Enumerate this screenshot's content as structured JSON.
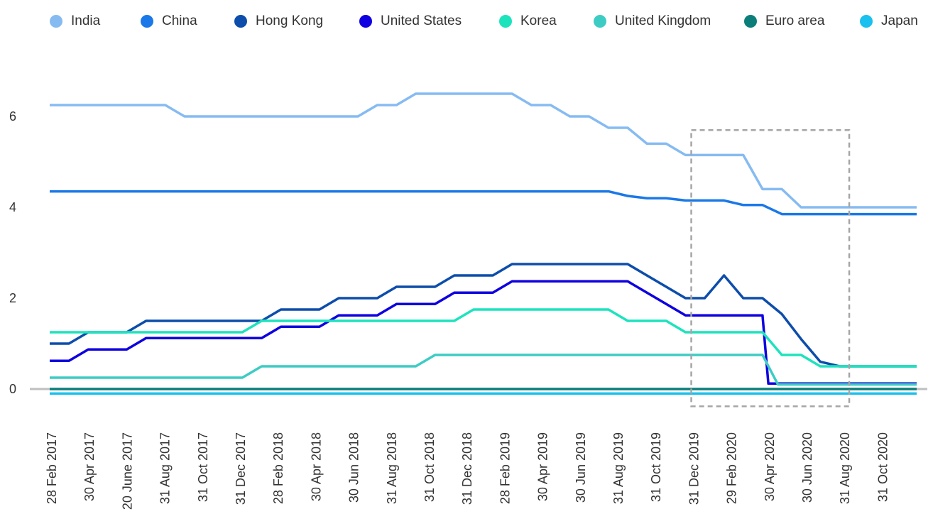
{
  "chart_data": {
    "type": "line",
    "title": "",
    "xlabel": "",
    "ylabel": "",
    "ylim": [
      -0.6,
      7.2
    ],
    "y_ticks": [
      0,
      2,
      4,
      6
    ],
    "x_tick_labels": [
      "28 Feb 2017",
      "30 Apr 2017",
      "20 June 2017",
      "31 Aug 2017",
      "31 Oct 2017",
      "31 Dec 2017",
      "28 Feb 2018",
      "30 Apr 2018",
      "30 Jun 2018",
      "31 Aug 2018",
      "31 Oct 2018",
      "31 Dec 2018",
      "28 Feb 2019",
      "30 Apr 2019",
      "30 Jun 2019",
      "31 Aug 2019",
      "31 Oct 2019",
      "31 Dec 2019",
      "29 Feb 2020",
      "30 Apr 2020",
      "30 Jun 2020",
      "31 Aug 2020",
      "31 Oct 2020"
    ],
    "x_range": [
      0,
      45
    ],
    "highlight_box": {
      "x_start": 33.3,
      "x_end": 41.5,
      "y_top": 5.7,
      "y_bottom": -0.38
    },
    "series": [
      {
        "name": "India",
        "color": "#86BBF2",
        "points": [
          [
            0,
            6.25
          ],
          [
            6,
            6.25
          ],
          [
            7,
            6.0
          ],
          [
            16,
            6.0
          ],
          [
            17,
            6.25
          ],
          [
            18,
            6.25
          ],
          [
            19,
            6.5
          ],
          [
            24,
            6.5
          ],
          [
            25,
            6.25
          ],
          [
            26,
            6.25
          ],
          [
            27,
            6.0
          ],
          [
            28,
            6.0
          ],
          [
            29,
            5.75
          ],
          [
            30,
            5.75
          ],
          [
            31,
            5.4
          ],
          [
            32,
            5.4
          ],
          [
            33,
            5.15
          ],
          [
            36,
            5.15
          ],
          [
            37,
            4.4
          ],
          [
            38,
            4.4
          ],
          [
            39,
            4.0
          ],
          [
            45,
            4.0
          ]
        ]
      },
      {
        "name": "China",
        "color": "#1A78E8",
        "points": [
          [
            0,
            4.35
          ],
          [
            29,
            4.35
          ],
          [
            30,
            4.25
          ],
          [
            31,
            4.2
          ],
          [
            32,
            4.2
          ],
          [
            33,
            4.15
          ],
          [
            34,
            4.15
          ],
          [
            35,
            4.15
          ],
          [
            36,
            4.05
          ],
          [
            37,
            4.05
          ],
          [
            38,
            3.85
          ],
          [
            45,
            3.85
          ]
        ]
      },
      {
        "name": "Hong Kong",
        "color": "#0D4DAB",
        "points": [
          [
            0,
            1.0
          ],
          [
            1,
            1.0
          ],
          [
            2,
            1.25
          ],
          [
            4,
            1.25
          ],
          [
            5,
            1.5
          ],
          [
            11,
            1.5
          ],
          [
            12,
            1.75
          ],
          [
            14,
            1.75
          ],
          [
            15,
            2.0
          ],
          [
            17,
            2.0
          ],
          [
            18,
            2.25
          ],
          [
            20,
            2.25
          ],
          [
            21,
            2.5
          ],
          [
            23,
            2.5
          ],
          [
            24,
            2.75
          ],
          [
            30,
            2.75
          ],
          [
            31,
            2.5
          ],
          [
            32,
            2.25
          ],
          [
            33,
            2.0
          ],
          [
            34,
            2.0
          ],
          [
            35,
            2.5
          ],
          [
            36,
            2.0
          ],
          [
            37,
            2.0
          ],
          [
            38,
            1.65
          ],
          [
            39,
            1.1
          ],
          [
            40,
            0.6
          ],
          [
            41,
            0.5
          ],
          [
            45,
            0.5
          ]
        ]
      },
      {
        "name": "United States",
        "color": "#0E00E0",
        "points": [
          [
            0,
            0.62
          ],
          [
            1,
            0.62
          ],
          [
            2,
            0.87
          ],
          [
            4,
            0.87
          ],
          [
            5,
            1.12
          ],
          [
            10,
            1.12
          ],
          [
            11,
            1.12
          ],
          [
            12,
            1.37
          ],
          [
            14,
            1.37
          ],
          [
            15,
            1.62
          ],
          [
            17,
            1.62
          ],
          [
            18,
            1.87
          ],
          [
            20,
            1.87
          ],
          [
            21,
            2.12
          ],
          [
            23,
            2.12
          ],
          [
            24,
            2.37
          ],
          [
            30,
            2.37
          ],
          [
            31,
            2.12
          ],
          [
            32,
            1.87
          ],
          [
            33,
            1.62
          ],
          [
            37,
            1.62
          ],
          [
            37.3,
            0.12
          ],
          [
            45,
            0.12
          ]
        ]
      },
      {
        "name": "Korea",
        "color": "#1DE3BD",
        "points": [
          [
            0,
            1.25
          ],
          [
            9,
            1.25
          ],
          [
            10,
            1.25
          ],
          [
            11,
            1.5
          ],
          [
            21,
            1.5
          ],
          [
            22,
            1.75
          ],
          [
            29,
            1.75
          ],
          [
            30,
            1.5
          ],
          [
            32,
            1.5
          ],
          [
            33,
            1.25
          ],
          [
            37,
            1.25
          ],
          [
            38,
            0.75
          ],
          [
            39,
            0.75
          ],
          [
            40,
            0.5
          ],
          [
            45,
            0.5
          ]
        ]
      },
      {
        "name": "United Kingdom",
        "color": "#3DCCC4",
        "points": [
          [
            0,
            0.25
          ],
          [
            9,
            0.25
          ],
          [
            10,
            0.25
          ],
          [
            11,
            0.5
          ],
          [
            18,
            0.5
          ],
          [
            19,
            0.5
          ],
          [
            20,
            0.75
          ],
          [
            37,
            0.75
          ],
          [
            37.8,
            0.1
          ],
          [
            45,
            0.1
          ]
        ]
      },
      {
        "name": "Euro area",
        "color": "#0B7E7A",
        "points": [
          [
            0,
            0.0
          ],
          [
            45,
            0.0
          ]
        ]
      },
      {
        "name": "Japan",
        "color": "#1AC0EE",
        "points": [
          [
            0,
            -0.1
          ],
          [
            45,
            -0.1
          ]
        ]
      }
    ]
  }
}
